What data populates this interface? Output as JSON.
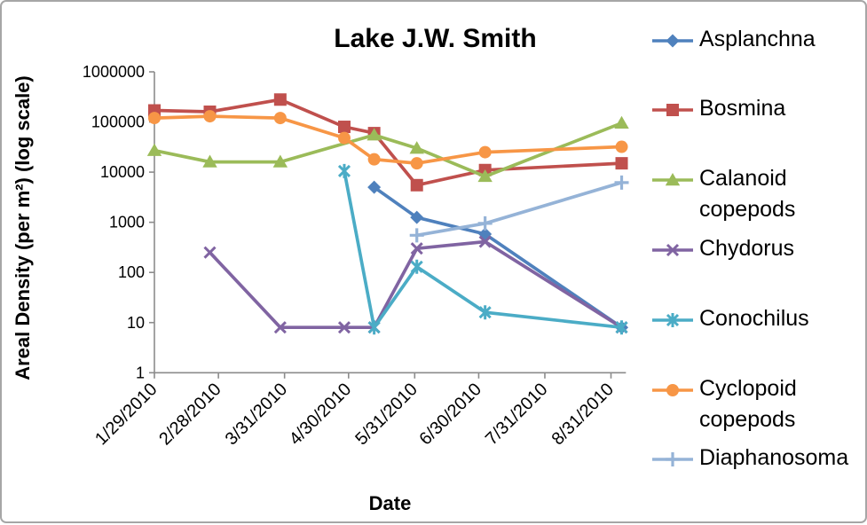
{
  "chart_data": {
    "type": "line",
    "title": "Lake J.W. Smith",
    "xlabel": "Date",
    "ylabel": "Areal Density (per m²) (log scale)",
    "y_scale": "log",
    "ylim": [
      1,
      1000000
    ],
    "y_ticks": [
      "1",
      "10",
      "100",
      "1000",
      "10000",
      "100000",
      "1000000"
    ],
    "x_tick_labels": [
      "1/29/2010",
      "2/28/2010",
      "3/31/2010",
      "4/30/2010",
      "5/31/2010",
      "6/30/2010",
      "7/31/2010",
      "8/31/2010"
    ],
    "grid": false,
    "legend_position": "right",
    "axis_color": "#8C8C8C",
    "text_color": "#000000",
    "series": [
      {
        "name": "Asplanchna",
        "color": "#4F81BD",
        "marker": "diamond",
        "points": [
          [
            "5/12/2010",
            5000
          ],
          [
            "6/1/2010",
            1250
          ],
          [
            "7/3/2010",
            580
          ],
          [
            "9/5/2010",
            8
          ]
        ]
      },
      {
        "name": "Bosmina",
        "color": "#C0504D",
        "marker": "square",
        "points": [
          [
            "1/29/2010",
            170000
          ],
          [
            "2/24/2010",
            160000
          ],
          [
            "3/29/2010",
            280000
          ],
          [
            "4/28/2010",
            80000
          ],
          [
            "5/12/2010",
            60000
          ],
          [
            "6/1/2010",
            5500
          ],
          [
            "7/3/2010",
            11000
          ],
          [
            "9/5/2010",
            15000
          ]
        ]
      },
      {
        "name": "Calanoid copepods",
        "color": "#9BBB59",
        "marker": "triangle",
        "points": [
          [
            "1/29/2010",
            27000
          ],
          [
            "2/24/2010",
            16000
          ],
          [
            "3/29/2010",
            16000
          ],
          [
            "5/12/2010",
            55000
          ],
          [
            "6/1/2010",
            30000
          ],
          [
            "7/3/2010",
            8200
          ],
          [
            "9/5/2010",
            95000
          ]
        ]
      },
      {
        "name": "Chydorus",
        "color": "#8064A2",
        "marker": "x",
        "points": [
          [
            "2/24/2010",
            250
          ],
          [
            "3/29/2010",
            8
          ],
          [
            "4/28/2010",
            8
          ],
          [
            "5/12/2010",
            8
          ],
          [
            "6/1/2010",
            300
          ],
          [
            "7/3/2010",
            410
          ],
          [
            "9/5/2010",
            8
          ]
        ]
      },
      {
        "name": "Conochilus",
        "color": "#4BACC6",
        "marker": "star",
        "points": [
          [
            "4/28/2010",
            10500
          ],
          [
            "5/12/2010",
            8
          ],
          [
            "6/1/2010",
            130
          ],
          [
            "7/3/2010",
            16
          ],
          [
            "9/5/2010",
            8
          ]
        ]
      },
      {
        "name": "Cyclopoid copepods",
        "color": "#F79646",
        "marker": "circle",
        "points": [
          [
            "1/29/2010",
            120000
          ],
          [
            "2/24/2010",
            130000
          ],
          [
            "3/29/2010",
            120000
          ],
          [
            "4/28/2010",
            48000
          ],
          [
            "5/12/2010",
            18000
          ],
          [
            "6/1/2010",
            15000
          ],
          [
            "7/3/2010",
            25000
          ],
          [
            "9/5/2010",
            32000
          ]
        ]
      },
      {
        "name": "Diaphanosoma",
        "color": "#95B3D7",
        "marker": "plus",
        "points": [
          [
            "6/1/2010",
            550
          ],
          [
            "7/3/2010",
            950
          ],
          [
            "9/5/2010",
            6200
          ]
        ]
      }
    ]
  }
}
